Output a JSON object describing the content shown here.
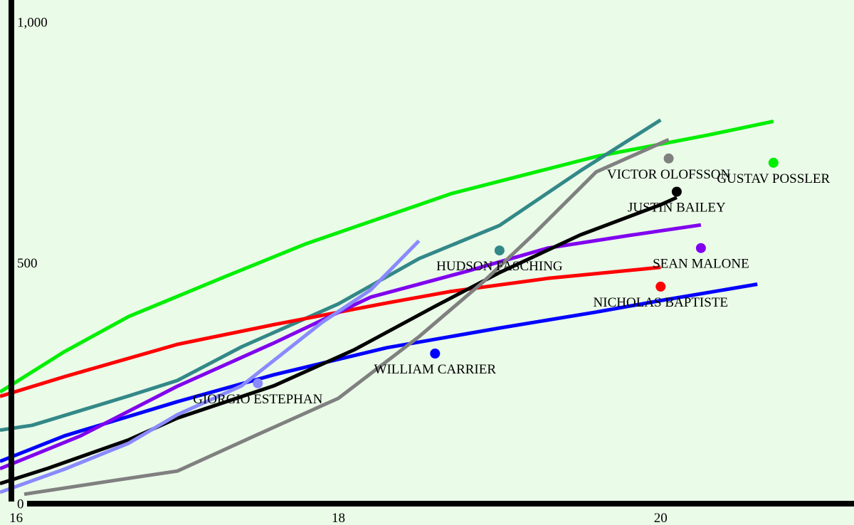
{
  "chart_data": {
    "type": "line",
    "title": "",
    "xlabel": "",
    "ylabel": "",
    "xlim": [
      15.9,
      21.2
    ],
    "ylim": [
      -45,
      1045
    ],
    "x_ticks": [
      {
        "value": 16,
        "label": "16"
      },
      {
        "value": 18,
        "label": "18"
      },
      {
        "value": 20,
        "label": "20"
      }
    ],
    "y_ticks": [
      {
        "value": 0,
        "label": "0"
      },
      {
        "value": 500,
        "label": "500"
      },
      {
        "value": 1000,
        "label": "1,000"
      }
    ],
    "grid": false,
    "legend": "none",
    "series": [
      {
        "color": "#00ee00",
        "points": [
          [
            15.9,
            231
          ],
          [
            16.3,
            315
          ],
          [
            16.7,
            388
          ],
          [
            17.3,
            471
          ],
          [
            17.8,
            539
          ],
          [
            18.7,
            643
          ],
          [
            19.6,
            720
          ],
          [
            20.3,
            765
          ],
          [
            20.7,
            793
          ]
        ],
        "marker": {
          "x": 20.7,
          "y": 707,
          "label": "GUSTAV POSSLER"
        }
      },
      {
        "color": "#338888",
        "points": [
          [
            15.9,
            152
          ],
          [
            16.1,
            162
          ],
          [
            16.7,
            223
          ],
          [
            17.0,
            255
          ],
          [
            17.4,
            325
          ],
          [
            18.0,
            414
          ],
          [
            18.5,
            508
          ],
          [
            19.0,
            577
          ],
          [
            19.5,
            690
          ],
          [
            20.0,
            796
          ]
        ],
        "marker": {
          "x": 19.0,
          "y": 525,
          "label": "HUDSON FASCHING"
        }
      },
      {
        "color": "#ff0000",
        "points": [
          [
            15.9,
            222
          ],
          [
            16.3,
            263
          ],
          [
            17.0,
            330
          ],
          [
            17.6,
            371
          ],
          [
            18.3,
            416
          ],
          [
            18.7,
            440
          ],
          [
            19.3,
            467
          ],
          [
            20.0,
            490
          ]
        ],
        "marker": {
          "x": 20.0,
          "y": 450,
          "label": "NICHOLAS BAPTISTE"
        }
      },
      {
        "color": "#0000ff",
        "points": [
          [
            15.9,
            87
          ],
          [
            16.3,
            140
          ],
          [
            17.0,
            211
          ],
          [
            17.6,
            267
          ],
          [
            18.3,
            323
          ],
          [
            19.0,
            364
          ],
          [
            19.6,
            397
          ],
          [
            20.0,
            421
          ],
          [
            20.6,
            455
          ]
        ],
        "marker": {
          "x": 18.6,
          "y": 311,
          "label": "WILLIAM CARRIER"
        }
      },
      {
        "color": "#8000ee",
        "points": [
          [
            15.9,
            72
          ],
          [
            16.4,
            140
          ],
          [
            17.0,
            243
          ],
          [
            17.6,
            333
          ],
          [
            18.2,
            428
          ],
          [
            18.8,
            482
          ],
          [
            19.3,
            530
          ],
          [
            19.8,
            556
          ],
          [
            20.25,
            578
          ]
        ],
        "marker": {
          "x": 20.25,
          "y": 530,
          "label": "SEAN MALONE"
        }
      },
      {
        "color": "#000000",
        "points": [
          [
            15.9,
            41
          ],
          [
            16.2,
            73
          ],
          [
            16.7,
            132
          ],
          [
            17.0,
            177
          ],
          [
            17.6,
            244
          ],
          [
            18.1,
            319
          ],
          [
            18.6,
            409
          ],
          [
            19.0,
            479
          ],
          [
            19.5,
            557
          ],
          [
            20.0,
            620
          ],
          [
            20.1,
            635
          ]
        ],
        "marker": {
          "x": 20.1,
          "y": 647,
          "label": "JUSTIN BAILEY"
        }
      },
      {
        "color": "#808080",
        "points": [
          [
            16.05,
            19
          ],
          [
            16.6,
            47
          ],
          [
            17.0,
            67
          ],
          [
            17.5,
            143
          ],
          [
            18.0,
            218
          ],
          [
            18.5,
            346
          ],
          [
            18.9,
            460
          ],
          [
            19.2,
            555
          ],
          [
            19.6,
            688
          ],
          [
            20.05,
            755
          ]
        ],
        "marker": {
          "x": 20.05,
          "y": 716,
          "label": "VICTOR OLOFSSON"
        }
      },
      {
        "color": "#8a8aff",
        "points": [
          [
            15.9,
            23
          ],
          [
            16.3,
            71
          ],
          [
            16.7,
            125
          ],
          [
            17.0,
            184
          ],
          [
            17.4,
            244
          ],
          [
            17.9,
            376
          ],
          [
            18.2,
            443
          ],
          [
            18.5,
            545
          ]
        ],
        "marker": {
          "x": 17.5,
          "y": 249,
          "label": "GIORGIO ESTEPHAN"
        }
      }
    ]
  }
}
